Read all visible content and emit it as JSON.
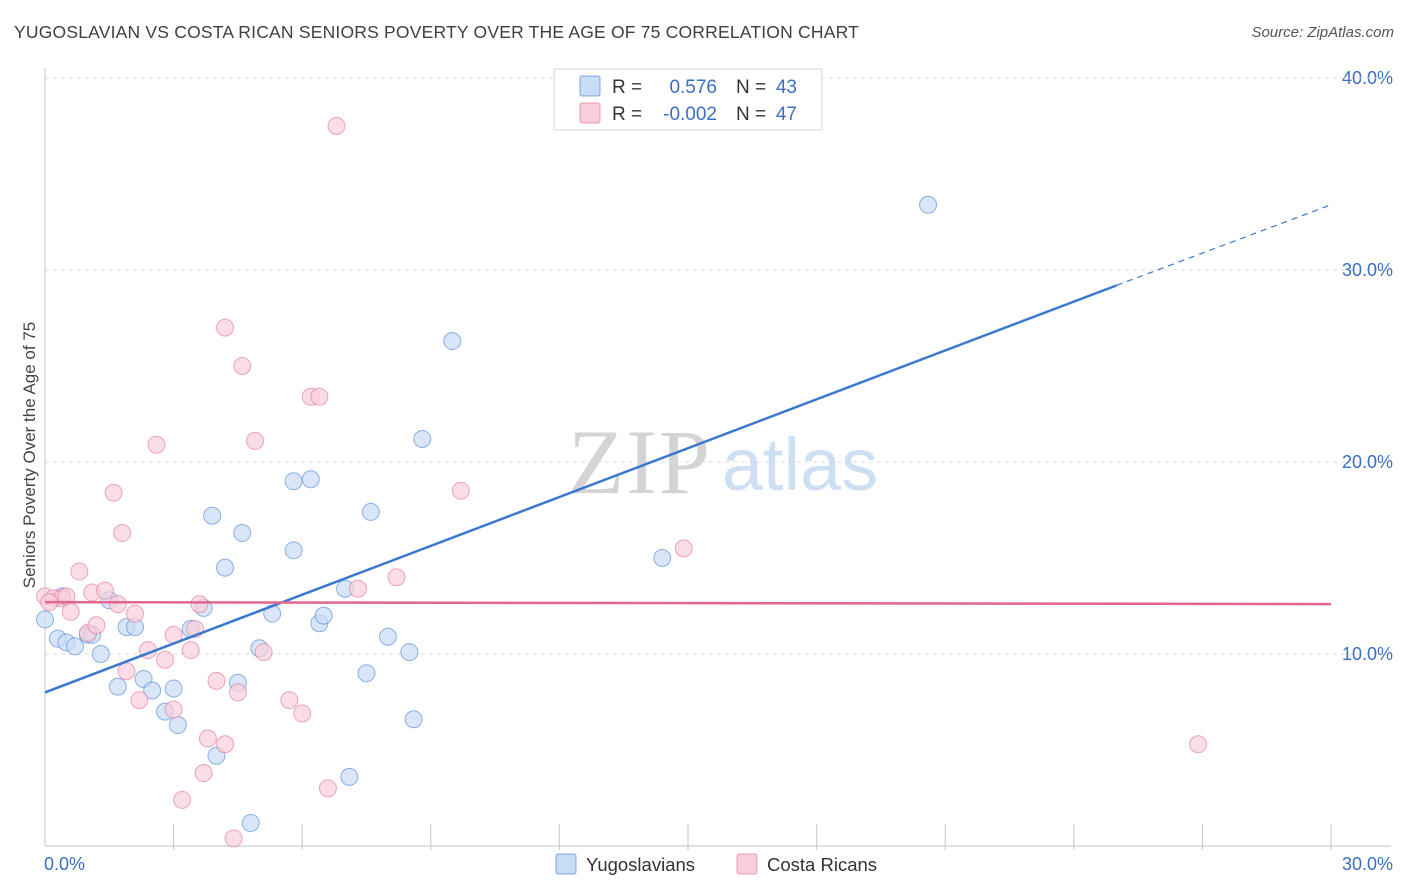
{
  "title": "YUGOSLAVIAN VS COSTA RICAN SENIORS POVERTY OVER THE AGE OF 75 CORRELATION CHART",
  "source": "Source: ZipAtlas.com",
  "watermark": {
    "zip": "ZIP",
    "atlas": "atlas"
  },
  "colors": {
    "blue": "#3a78d0",
    "blue_fill": "#c9dcf5",
    "pink": "#e2668e",
    "pink_fill": "#f8cedc",
    "axis_text": "#3a6fc4",
    "grid": "#d9d9d9"
  },
  "chart_data": {
    "type": "scatter",
    "title": "YUGOSLAVIAN VS COSTA RICAN SENIORS POVERTY OVER THE AGE OF 75 CORRELATION CHART",
    "xlabel": "",
    "ylabel": "Seniors Poverty Over the Age of 75",
    "xlim": [
      0,
      30
    ],
    "ylim": [
      0,
      40
    ],
    "x_tick_labels": [
      "0.0%",
      "30.0%"
    ],
    "y_ticks": [
      10,
      20,
      30,
      40
    ],
    "y_tick_labels": [
      "10.0%",
      "20.0%",
      "30.0%",
      "40.0%"
    ],
    "legend_position": "top-center",
    "stats": [
      {
        "r_label": "R =",
        "r_value": "0.576",
        "n_label": "N =",
        "n_value": "43"
      },
      {
        "r_label": "R =",
        "r_value": "-0.002",
        "n_label": "N =",
        "n_value": "47"
      }
    ],
    "series": [
      {
        "name": "Yugoslavians",
        "color": "#3a78d0",
        "trend": {
          "x0": 0,
          "y0": 8.0,
          "x1": 25.0,
          "y1": 29.2,
          "dash_x1": 30.0,
          "dash_y1": 33.4
        },
        "points": [
          [
            0.0,
            11.8
          ],
          [
            0.3,
            10.8
          ],
          [
            0.5,
            10.6
          ],
          [
            0.7,
            10.4
          ],
          [
            1.0,
            11.0
          ],
          [
            1.1,
            11.0
          ],
          [
            1.3,
            10.0
          ],
          [
            1.5,
            12.8
          ],
          [
            1.7,
            8.3
          ],
          [
            1.9,
            11.4
          ],
          [
            2.1,
            11.4
          ],
          [
            2.3,
            8.7
          ],
          [
            2.5,
            8.1
          ],
          [
            2.8,
            7.0
          ],
          [
            3.0,
            8.2
          ],
          [
            3.1,
            6.3
          ],
          [
            3.4,
            11.3
          ],
          [
            3.7,
            12.4
          ],
          [
            3.9,
            17.2
          ],
          [
            4.0,
            4.7
          ],
          [
            4.2,
            14.5
          ],
          [
            4.5,
            8.5
          ],
          [
            4.6,
            16.3
          ],
          [
            4.8,
            1.2
          ],
          [
            5.0,
            10.3
          ],
          [
            5.3,
            12.1
          ],
          [
            5.8,
            15.4
          ],
          [
            5.8,
            19.0
          ],
          [
            6.2,
            19.1
          ],
          [
            6.4,
            11.6
          ],
          [
            6.5,
            12.0
          ],
          [
            7.0,
            13.4
          ],
          [
            7.1,
            3.6
          ],
          [
            7.5,
            9.0
          ],
          [
            7.6,
            17.4
          ],
          [
            8.0,
            10.9
          ],
          [
            8.5,
            10.1
          ],
          [
            8.6,
            6.6
          ],
          [
            8.8,
            21.2
          ],
          [
            9.5,
            26.3
          ],
          [
            14.4,
            15.0
          ],
          [
            20.6,
            33.4
          ],
          [
            0.4,
            13.0
          ]
        ]
      },
      {
        "name": "Costa Ricans",
        "color": "#e2668e",
        "trend": {
          "x0": 0,
          "y0": 12.7,
          "x1": 30.0,
          "y1": 12.6
        },
        "points": [
          [
            0.0,
            13.0
          ],
          [
            0.2,
            12.9
          ],
          [
            0.4,
            12.9
          ],
          [
            0.5,
            13.0
          ],
          [
            0.6,
            12.2
          ],
          [
            0.8,
            14.3
          ],
          [
            1.0,
            11.1
          ],
          [
            1.1,
            13.2
          ],
          [
            1.2,
            11.5
          ],
          [
            1.4,
            13.3
          ],
          [
            1.6,
            18.4
          ],
          [
            1.7,
            12.6
          ],
          [
            1.8,
            16.3
          ],
          [
            1.9,
            9.1
          ],
          [
            2.1,
            12.1
          ],
          [
            2.2,
            7.6
          ],
          [
            2.4,
            10.2
          ],
          [
            2.6,
            20.9
          ],
          [
            2.8,
            9.7
          ],
          [
            3.0,
            11.0
          ],
          [
            3.0,
            7.1
          ],
          [
            3.2,
            2.4
          ],
          [
            3.4,
            10.2
          ],
          [
            3.5,
            11.3
          ],
          [
            3.6,
            12.6
          ],
          [
            3.7,
            3.8
          ],
          [
            3.8,
            5.6
          ],
          [
            4.0,
            8.6
          ],
          [
            4.2,
            5.3
          ],
          [
            4.2,
            27.0
          ],
          [
            4.4,
            0.4
          ],
          [
            4.5,
            8.0
          ],
          [
            4.6,
            25.0
          ],
          [
            4.9,
            21.1
          ],
          [
            5.1,
            10.1
          ],
          [
            5.7,
            7.6
          ],
          [
            6.0,
            6.9
          ],
          [
            6.2,
            23.4
          ],
          [
            6.4,
            23.4
          ],
          [
            6.6,
            3.0
          ],
          [
            6.8,
            37.5
          ],
          [
            7.3,
            13.4
          ],
          [
            8.2,
            14.0
          ],
          [
            9.7,
            18.5
          ],
          [
            14.9,
            15.5
          ],
          [
            26.9,
            5.3
          ],
          [
            0.1,
            12.7
          ]
        ]
      }
    ]
  }
}
